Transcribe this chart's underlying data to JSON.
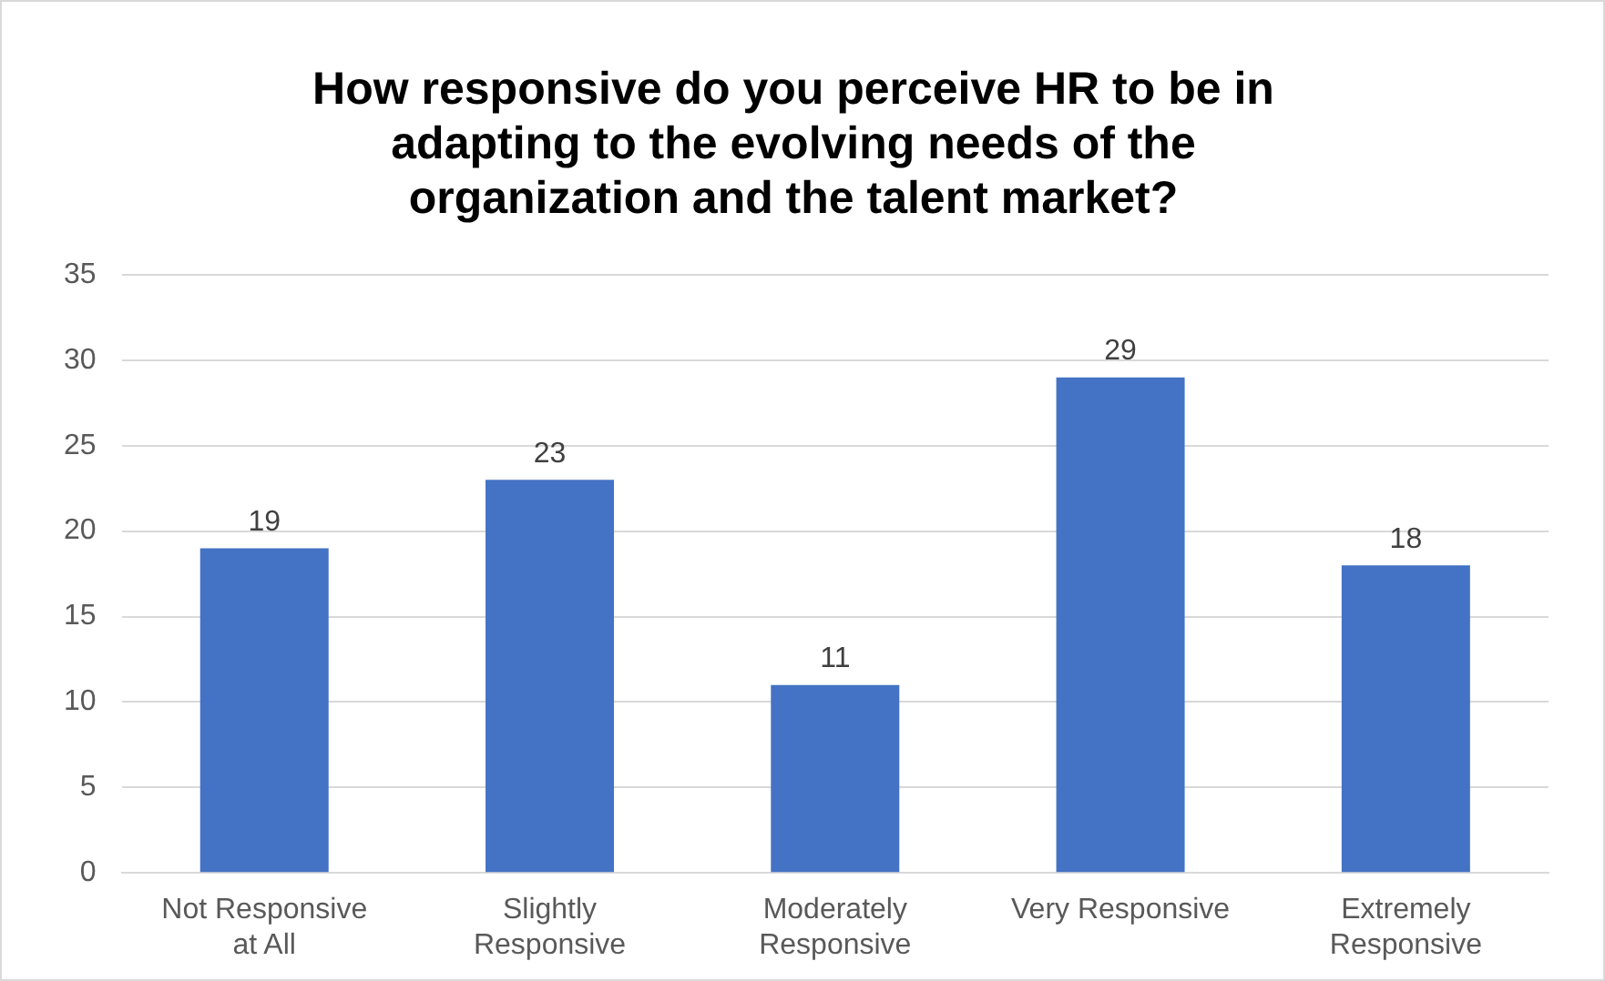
{
  "chart_data": {
    "type": "bar",
    "title": "How responsive do you perceive HR to be in adapting to the evolving needs of the organization and the talent market?",
    "categories": [
      "Not Responsive at All",
      "Slightly Responsive",
      "Moderately Responsive",
      "Very Responsive",
      "Extremely Responsive"
    ],
    "values": [
      19,
      23,
      11,
      29,
      18
    ],
    "color": "#4472c4",
    "ylim": [
      0,
      35
    ],
    "yticks": [
      0,
      5,
      10,
      15,
      20,
      25,
      30,
      35
    ],
    "grid": "y",
    "data_labels": true,
    "legend": false
  }
}
